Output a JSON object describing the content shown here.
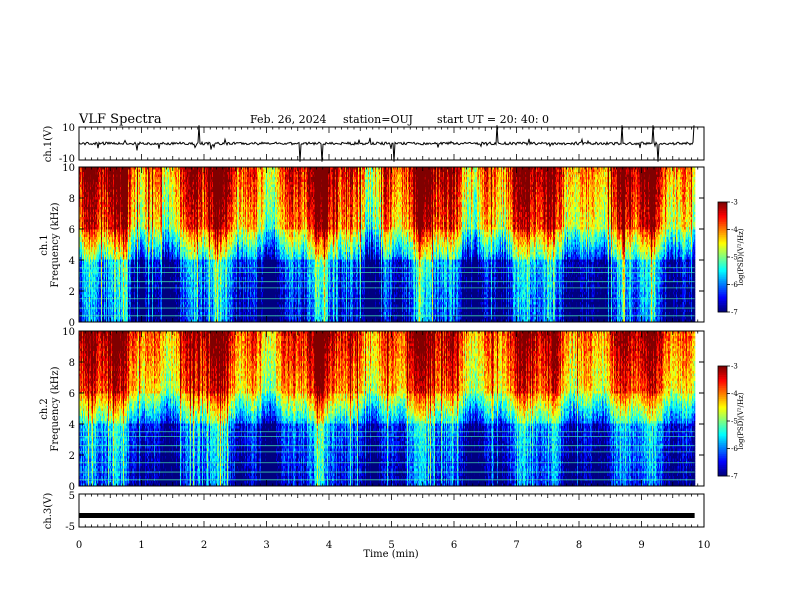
{
  "header": {
    "title": "VLF Spectra",
    "date": "Feb. 26, 2024",
    "station": "station=OUJ",
    "start_time": "start  UT =   20: 40: 0"
  },
  "chart_data": [
    {
      "type": "line",
      "panel": "ch1-waveform",
      "ylabel": "ch.1(V)",
      "ylim": [
        -10,
        10
      ],
      "y_ticks": [
        "10",
        "-10"
      ],
      "x_range_min": [
        0,
        9.85
      ],
      "description_level": 0,
      "trace_color": "#000000"
    },
    {
      "type": "heatmap",
      "panel": "ch1-spectrogram",
      "ylabel_channel": "ch.1",
      "ylabel": "Frequency (kHz)",
      "ylim": [
        0,
        10
      ],
      "y_ticks": [
        "0",
        "2",
        "4",
        "6",
        "8",
        "10"
      ],
      "colorbar": {
        "label": "log(PSD)(V²/Hz)",
        "range": [
          -7,
          -3
        ],
        "ticks": [
          "-3",
          "-4",
          "-5",
          "-6",
          "-7"
        ],
        "colormap": "jet"
      }
    },
    {
      "type": "heatmap",
      "panel": "ch2-spectrogram",
      "ylabel_channel": "ch.2",
      "ylabel": "Frequency (kHz)",
      "ylim": [
        0,
        10
      ],
      "y_ticks": [
        "0",
        "2",
        "4",
        "6",
        "8",
        "10"
      ],
      "colorbar": {
        "label": "log(PSD)(V²/Hz)",
        "range": [
          -7,
          -3
        ],
        "ticks": [
          "-3",
          "-4",
          "-5",
          "-6",
          "-7"
        ],
        "colormap": "jet"
      }
    },
    {
      "type": "line",
      "panel": "ch3-waveform",
      "ylabel": "ch.3(V)",
      "ylim": [
        -5,
        5
      ],
      "y_ticks": [
        "5",
        "-5"
      ],
      "constant_value": -1.5,
      "trace_color": "#000000"
    }
  ],
  "x_axis": {
    "label": "Time  (min)",
    "range": [
      0,
      10
    ],
    "ticks": [
      "0",
      "1",
      "2",
      "3",
      "4",
      "5",
      "6",
      "7",
      "8",
      "9",
      "10"
    ],
    "data_end_min": 9.85
  }
}
